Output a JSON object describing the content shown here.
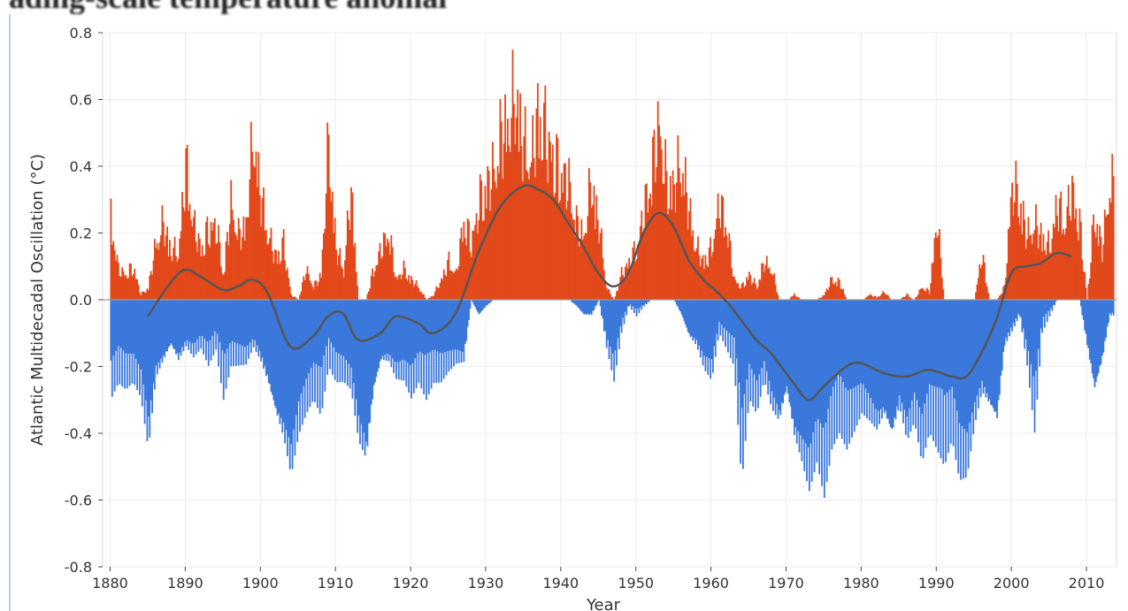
{
  "header": {
    "cutoff_text": "ading-scale temperature anomal"
  },
  "chart_data": {
    "type": "bar",
    "xlabel": "Year",
    "ylabel": "Atlantic Multidecadal Oscillation (°C)",
    "xlim": [
      1879,
      2014
    ],
    "ylim": [
      -0.8,
      0.8
    ],
    "xticks": [
      1880,
      1890,
      1900,
      1910,
      1920,
      1930,
      1940,
      1950,
      1960,
      1970,
      1980,
      1990,
      2000,
      2010
    ],
    "yticks": [
      "0.8",
      "0.6",
      "0.4",
      "0.2",
      "0.0",
      "-0.2",
      "-0.4",
      "-0.6",
      "-0.8"
    ],
    "positive_color": "#e2491b",
    "negative_color": "#3a78dc",
    "smooth_color": "#555555",
    "grid": true,
    "monthly_anomaly_envelope": {
      "x": [
        1880,
        1881,
        1882,
        1883,
        1884,
        1885,
        1886,
        1887,
        1888,
        1889,
        1890,
        1891,
        1892,
        1893,
        1894,
        1895,
        1896,
        1897,
        1898,
        1899,
        1900,
        1901,
        1902,
        1903,
        1904,
        1905,
        1906,
        1907,
        1908,
        1909,
        1910,
        1911,
        1912,
        1913,
        1914,
        1915,
        1916,
        1917,
        1918,
        1919,
        1920,
        1921,
        1922,
        1923,
        1924,
        1925,
        1926,
        1927,
        1928,
        1929,
        1930,
        1931,
        1932,
        1933,
        1934,
        1935,
        1936,
        1937,
        1938,
        1939,
        1940,
        1941,
        1942,
        1943,
        1944,
        1945,
        1946,
        1947,
        1948,
        1949,
        1950,
        1951,
        1952,
        1953,
        1954,
        1955,
        1956,
        1957,
        1958,
        1959,
        1960,
        1961,
        1962,
        1963,
        1964,
        1965,
        1966,
        1967,
        1968,
        1969,
        1970,
        1971,
        1972,
        1973,
        1974,
        1975,
        1976,
        1977,
        1978,
        1979,
        1980,
        1981,
        1982,
        1983,
        1984,
        1985,
        1986,
        1987,
        1988,
        1989,
        1990,
        1991,
        1992,
        1993,
        1994,
        1995,
        1996,
        1997,
        1998,
        1999,
        2000,
        2001,
        2002,
        2003,
        2004,
        2005,
        2006,
        2007,
        2008,
        2009,
        2010,
        2011,
        2012,
        2013
      ],
      "max": [
        0.33,
        0.12,
        0.1,
        0.13,
        0.02,
        0.05,
        0.22,
        0.3,
        0.2,
        0.18,
        0.53,
        0.3,
        0.2,
        0.28,
        0.3,
        0.1,
        0.38,
        0.25,
        0.3,
        0.65,
        0.4,
        0.25,
        0.17,
        0.22,
        0.02,
        0.0,
        0.12,
        0.05,
        0.1,
        0.62,
        0.2,
        0.12,
        0.43,
        0.0,
        0.0,
        0.12,
        0.2,
        0.27,
        0.08,
        0.12,
        0.08,
        0.05,
        0.0,
        0.02,
        0.08,
        0.15,
        0.1,
        0.32,
        0.22,
        0.38,
        0.45,
        0.5,
        0.65,
        0.7,
        0.8,
        0.6,
        0.55,
        0.75,
        0.65,
        0.55,
        0.5,
        0.45,
        0.3,
        0.25,
        0.47,
        0.3,
        0.05,
        0.0,
        0.1,
        0.15,
        0.2,
        0.35,
        0.5,
        0.7,
        0.45,
        0.45,
        0.55,
        0.35,
        0.2,
        0.15,
        0.2,
        0.38,
        0.3,
        0.08,
        0.05,
        0.1,
        0.05,
        0.15,
        0.12,
        0.0,
        0.0,
        0.02,
        0.0,
        0.0,
        0.0,
        0.02,
        0.08,
        0.07,
        0.0,
        0.0,
        0.0,
        0.02,
        0.01,
        0.03,
        0.0,
        0.0,
        0.02,
        0.0,
        0.05,
        0.03,
        0.32,
        0.0,
        0.0,
        0.0,
        0.0,
        0.0,
        0.18,
        0.0,
        0.0,
        0.05,
        0.45,
        0.4,
        0.25,
        0.3,
        0.25,
        0.2,
        0.38,
        0.3,
        0.43,
        0.3,
        0.0,
        0.35,
        0.2,
        0.45
      ],
      "min": [
        -0.3,
        -0.25,
        -0.27,
        -0.25,
        -0.3,
        -0.47,
        -0.25,
        -0.2,
        -0.15,
        -0.2,
        -0.15,
        -0.18,
        -0.15,
        -0.2,
        -0.15,
        -0.3,
        -0.2,
        -0.2,
        -0.2,
        -0.15,
        -0.2,
        -0.28,
        -0.38,
        -0.45,
        -0.56,
        -0.42,
        -0.35,
        -0.3,
        -0.35,
        -0.2,
        -0.25,
        -0.25,
        -0.28,
        -0.45,
        -0.52,
        -0.3,
        -0.2,
        -0.2,
        -0.25,
        -0.25,
        -0.3,
        -0.25,
        -0.3,
        -0.25,
        -0.25,
        -0.22,
        -0.2,
        -0.2,
        0.0,
        -0.05,
        -0.02,
        0.0,
        0.0,
        0.0,
        0.0,
        0.0,
        0.0,
        0.0,
        0.0,
        0.0,
        0.0,
        0.0,
        -0.02,
        -0.05,
        -0.05,
        0.0,
        -0.15,
        -0.25,
        -0.1,
        -0.02,
        -0.05,
        -0.02,
        0.0,
        0.0,
        0.0,
        0.0,
        -0.05,
        -0.12,
        -0.15,
        -0.22,
        -0.25,
        -0.1,
        -0.15,
        -0.2,
        -0.55,
        -0.3,
        -0.35,
        -0.25,
        -0.35,
        -0.4,
        -0.3,
        -0.45,
        -0.52,
        -0.6,
        -0.5,
        -0.6,
        -0.45,
        -0.4,
        -0.45,
        -0.4,
        -0.35,
        -0.38,
        -0.42,
        -0.38,
        -0.45,
        -0.35,
        -0.45,
        -0.38,
        -0.5,
        -0.4,
        -0.45,
        -0.5,
        -0.42,
        -0.55,
        -0.55,
        -0.4,
        -0.3,
        -0.35,
        -0.4,
        -0.15,
        -0.1,
        -0.05,
        -0.2,
        -0.4,
        -0.1,
        -0.05,
        0.0,
        0.0,
        0.0,
        0.0,
        -0.15,
        -0.3,
        -0.2,
        -0.05
      ]
    },
    "smoothed_series": {
      "x": [
        1885,
        1888,
        1890,
        1892,
        1895,
        1897,
        1899,
        1901,
        1904,
        1907,
        1909,
        1911,
        1913,
        1916,
        1918,
        1921,
        1923,
        1926,
        1929,
        1932,
        1935,
        1937,
        1939,
        1941,
        1943,
        1945,
        1947,
        1949,
        1951,
        1953,
        1955,
        1957,
        1959,
        1961,
        1963,
        1966,
        1968,
        1971,
        1973,
        1975,
        1978,
        1980,
        1983,
        1986,
        1989,
        1992,
        1994,
        1996,
        1998,
        2000,
        2002,
        2004,
        2006,
        2008
      ],
      "y": [
        -0.05,
        0.05,
        0.09,
        0.07,
        0.03,
        0.04,
        0.06,
        0.02,
        -0.14,
        -0.11,
        -0.05,
        -0.04,
        -0.12,
        -0.1,
        -0.05,
        -0.07,
        -0.1,
        -0.04,
        0.14,
        0.28,
        0.34,
        0.33,
        0.3,
        0.23,
        0.16,
        0.08,
        0.04,
        0.08,
        0.2,
        0.26,
        0.22,
        0.12,
        0.06,
        0.02,
        -0.03,
        -0.12,
        -0.16,
        -0.25,
        -0.3,
        -0.26,
        -0.2,
        -0.19,
        -0.22,
        -0.23,
        -0.21,
        -0.23,
        -0.23,
        -0.16,
        -0.06,
        0.08,
        0.1,
        0.11,
        0.14,
        0.13
      ]
    }
  }
}
